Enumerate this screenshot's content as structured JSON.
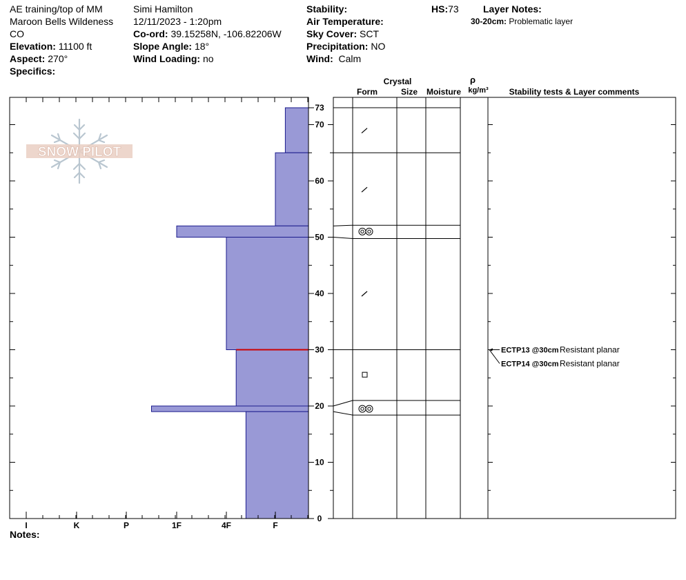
{
  "header": {
    "location_line1": "AE training/top of MM",
    "location_line2": "Maroon Bells Wildeness",
    "state": "CO",
    "elevation_label": "Elevation:",
    "elevation_value": "11100 ft",
    "aspect_label": "Aspect:",
    "aspect_value": "270°",
    "specifics_label": "Specifics:",
    "observer": "Simi Hamilton",
    "datetime": "12/11/2023 - 1:20pm",
    "coord_label": "Co-ord:",
    "coord_value": "39.15258N, -106.82206W",
    "slope_label": "Slope Angle:",
    "slope_value": "18°",
    "wind_loading_label": "Wind Loading:",
    "wind_loading_value": "no",
    "stability_label": "Stability:",
    "air_temp_label": "Air Temperature:",
    "sky_label": "Sky Cover:",
    "sky_value": "SCT",
    "precip_label": "Precipitation:",
    "precip_value": "NO",
    "wind_label": "Wind:",
    "wind_value": "Calm",
    "hs_label": "HS:",
    "hs_value": "73",
    "layer_notes_label": "Layer Notes:",
    "layer_note_range": "30-20cm:",
    "layer_note_text": "Problematic layer"
  },
  "columns": {
    "crystal": "Crystal",
    "form": "Form",
    "size": "Size",
    "moisture": "Moisture",
    "rho": "ρ",
    "density_unit": "kg/m³",
    "comments": "Stability tests & Layer comments"
  },
  "notes_label": "Notes:",
  "logo_text": "SNOW PILOT",
  "colors": {
    "layer_fill": "#9999d6",
    "layer_stroke": "#1a1a8c",
    "problem_line": "#cc0000"
  },
  "chart_data": {
    "type": "snow_profile",
    "hs_cm": 73,
    "y_ticks_cm": [
      0,
      10,
      20,
      30,
      40,
      50,
      60,
      70,
      73
    ],
    "hardness_ticks": [
      "I",
      "K",
      "P",
      "1F",
      "4F",
      "F"
    ],
    "layers": [
      {
        "top": 73,
        "bottom": 65,
        "hardness": 0.7,
        "form": "decomp",
        "form_cm": 69
      },
      {
        "top": 65,
        "bottom": 52,
        "hardness": 1.0,
        "form": "decomp",
        "form_cm": 58.5
      },
      {
        "top": 52,
        "bottom": 50,
        "hardness": 3.0,
        "form": "rounded",
        "form_cm": 51
      },
      {
        "top": 50,
        "bottom": 30,
        "hardness": 2.0,
        "form": "decomp",
        "form_cm": 40
      },
      {
        "top": 30,
        "bottom": 20,
        "hardness": 1.8,
        "form": "faceted",
        "form_cm": 25.5
      },
      {
        "top": 20,
        "bottom": 19,
        "hardness": 3.5,
        "form": "rounded",
        "form_cm": 19.5
      },
      {
        "top": 19,
        "bottom": 0,
        "hardness": 1.6,
        "form": "none"
      }
    ],
    "problem_layer_cm": 30,
    "tests": [
      {
        "depth_cm": 30,
        "code": "ECTP13 @30cm",
        "comment": "Resistant planar"
      },
      {
        "depth_cm": 30,
        "code": "ECTP14 @30cm",
        "comment": "Resistant planar"
      }
    ]
  }
}
